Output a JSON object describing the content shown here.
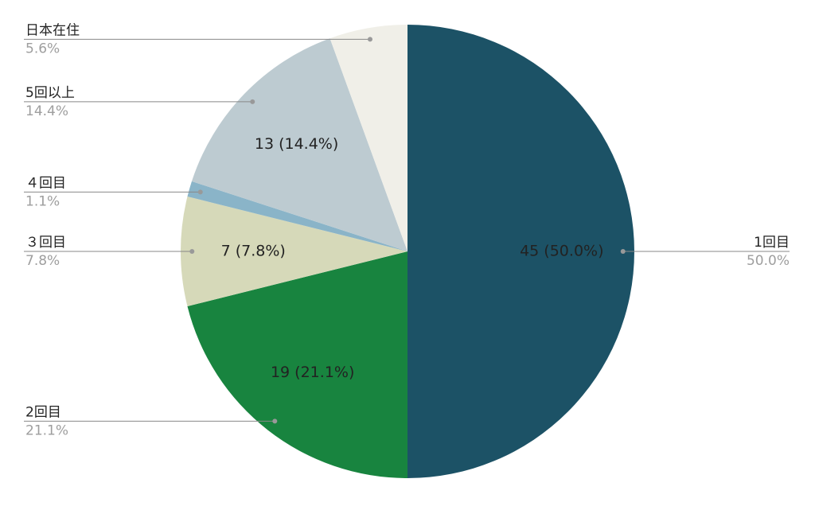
{
  "chart_data": {
    "type": "pie",
    "categories": [
      "1回目",
      "2回目",
      "３回目",
      "４回目",
      "5回以上",
      "日本在住"
    ],
    "values": [
      45,
      19,
      7,
      1,
      13,
      5
    ],
    "value_labels": [
      "45 (50.0%)",
      "19 (21.1%)",
      "7 (7.8%)",
      null,
      "13 (14.4%)",
      null
    ],
    "percent_labels": [
      "50.0%",
      "21.1%",
      "7.8%",
      "1.1%",
      "14.4%",
      "5.6%"
    ],
    "colors": [
      "#1c5266",
      "#18843f",
      "#d6d9b9",
      "#8ab4c8",
      "#bdcbd1",
      "#f0efe8"
    ]
  }
}
